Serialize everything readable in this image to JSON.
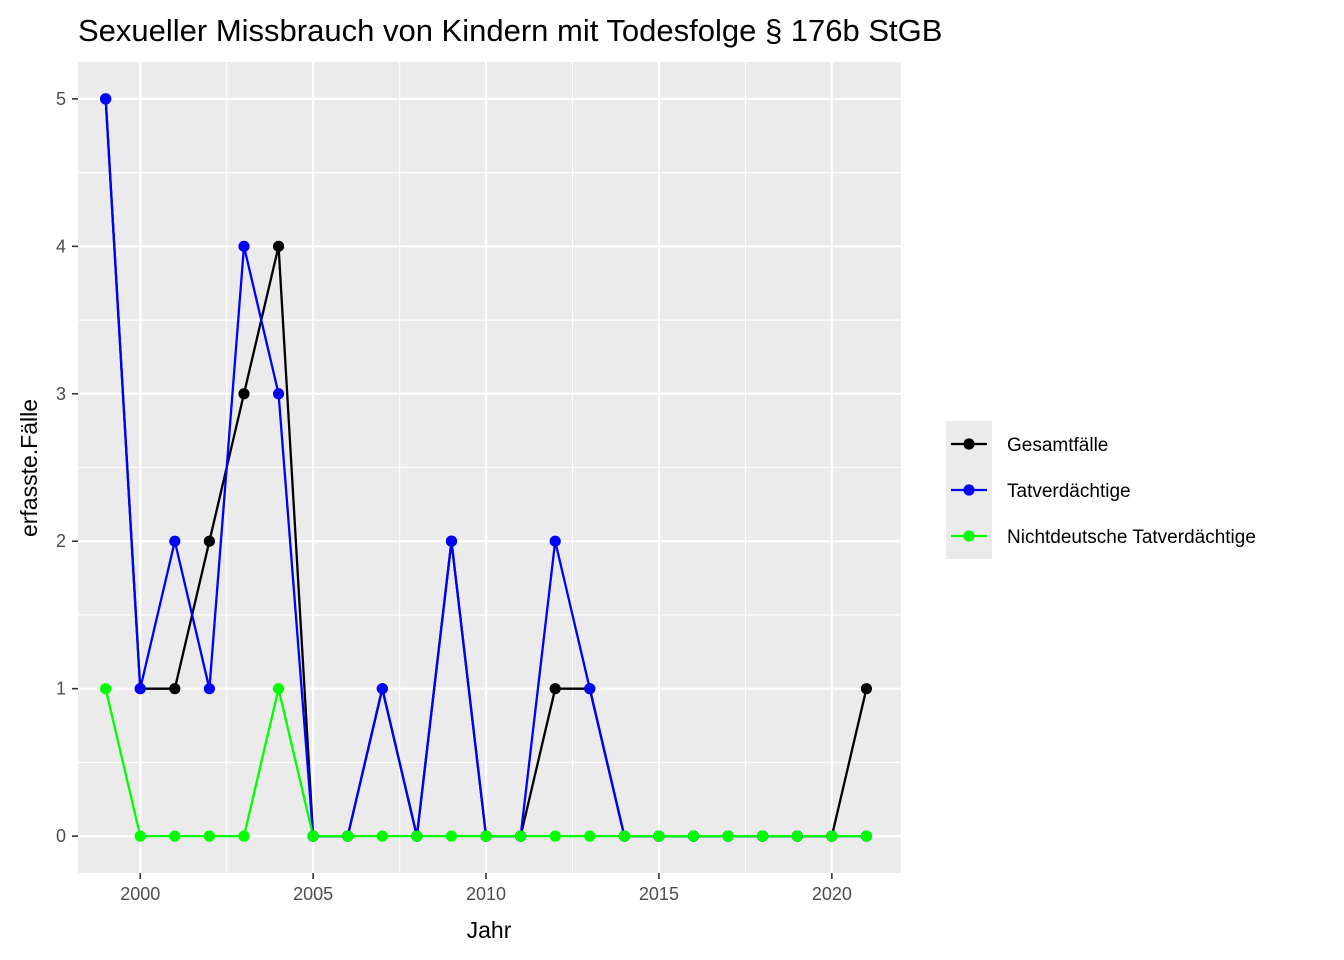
{
  "chart_data": {
    "type": "line",
    "title": "Sexueller Missbrauch von Kindern mit Todesfolge § 176b StGB",
    "xlabel": "Jahr",
    "ylabel": "erfasste.Fälle",
    "xlim": [
      1998.2,
      2022.0
    ],
    "ylim": [
      -0.25,
      5.25
    ],
    "x_ticks": [
      2000,
      2005,
      2010,
      2015,
      2020
    ],
    "y_ticks": [
      0,
      1,
      2,
      3,
      4,
      5
    ],
    "grid": true,
    "legend_position": "right",
    "panel_background": "#ebebeb",
    "grid_color": "#ffffff",
    "x": [
      1999,
      2000,
      2001,
      2002,
      2003,
      2004,
      2005,
      2006,
      2007,
      2008,
      2009,
      2010,
      2011,
      2012,
      2013,
      2014,
      2015,
      2016,
      2017,
      2018,
      2019,
      2020,
      2021
    ],
    "series": [
      {
        "name": "Gesamtfälle",
        "color": "#000000",
        "values": [
          5,
          1,
          1,
          2,
          3,
          4,
          0,
          0,
          1,
          0,
          2,
          0,
          0,
          1,
          1,
          0,
          0,
          0,
          0,
          0,
          0,
          0,
          1
        ]
      },
      {
        "name": "Tatverdächtige",
        "color": "#0000ff",
        "values": [
          5,
          1,
          2,
          1,
          4,
          3,
          0,
          0,
          1,
          0,
          2,
          0,
          0,
          2,
          1,
          0,
          0,
          0,
          0,
          0,
          0,
          0,
          0
        ]
      },
      {
        "name": "Nichtdeutsche Tatverdächtige",
        "color": "#00ff00",
        "values": [
          1,
          0,
          0,
          0,
          0,
          1,
          0,
          0,
          0,
          0,
          0,
          0,
          0,
          0,
          0,
          0,
          0,
          0,
          0,
          0,
          0,
          0,
          0
        ]
      }
    ]
  }
}
